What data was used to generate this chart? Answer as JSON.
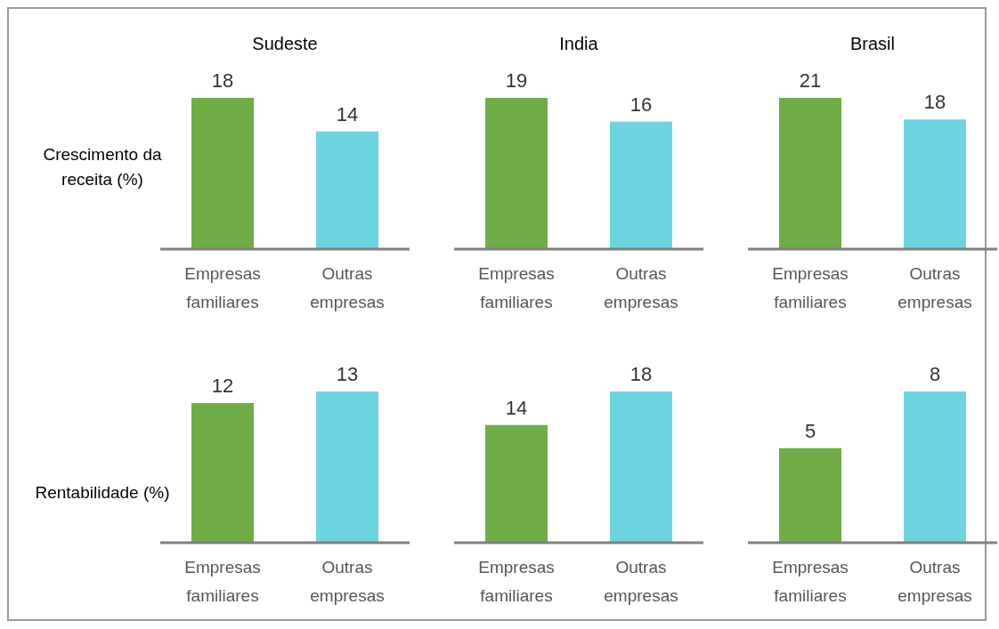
{
  "chart_data": [
    {
      "type": "bar",
      "title": "Sudeste",
      "ylabel": "Crescimento da receita (%)",
      "categories": [
        "Empresas familiares",
        "Outras empresas"
      ],
      "values": [
        18,
        14
      ],
      "colors": [
        "#70ad47",
        "#6dd5e0"
      ],
      "data_labels": true
    },
    {
      "type": "bar",
      "title": "India",
      "categories": [
        "Empresas familiares",
        "Outras empresas"
      ],
      "values": [
        19,
        16
      ],
      "colors": [
        "#70ad47",
        "#6dd5e0"
      ],
      "data_labels": true
    },
    {
      "type": "bar",
      "title": "Brasil",
      "categories": [
        "Empresas familiares",
        "Outras empresas"
      ],
      "values": [
        21,
        18
      ],
      "colors": [
        "#70ad47",
        "#6dd5e0"
      ],
      "data_labels": true
    },
    {
      "type": "bar",
      "ylabel": "Rentabilidade (%)",
      "categories": [
        "Empresas familiares",
        "Outras empresas"
      ],
      "values": [
        12,
        13
      ],
      "colors": [
        "#70ad47",
        "#6dd5e0"
      ],
      "data_labels": true
    },
    {
      "type": "bar",
      "categories": [
        "Empresas familiares",
        "Outras empresas"
      ],
      "values": [
        14,
        18
      ],
      "colors": [
        "#70ad47",
        "#6dd5e0"
      ],
      "data_labels": true
    },
    {
      "type": "bar",
      "categories": [
        "Empresas familiares",
        "Outras empresas"
      ],
      "values": [
        5,
        8
      ],
      "colors": [
        "#70ad47",
        "#6dd5e0"
      ],
      "data_labels": true
    }
  ]
}
